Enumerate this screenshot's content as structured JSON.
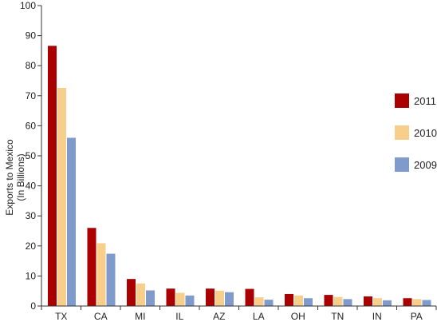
{
  "chart_data": {
    "type": "bar",
    "title": "",
    "xlabel": "",
    "ylabel_lines": [
      "Exports to Mexico",
      "(In Billions)"
    ],
    "ylim": [
      0,
      100
    ],
    "yticks": [
      0,
      10,
      20,
      30,
      40,
      50,
      60,
      70,
      80,
      90,
      100
    ],
    "categories": [
      "TX",
      "CA",
      "MI",
      "IL",
      "AZ",
      "LA",
      "OH",
      "TN",
      "IN",
      "PA"
    ],
    "series": [
      {
        "name": "2011",
        "color": "#aa0000",
        "values": [
          86.6,
          26.0,
          9.0,
          5.8,
          5.8,
          5.7,
          4.0,
          3.7,
          3.2,
          2.6
        ]
      },
      {
        "name": "2010",
        "color": "#f7cf8b",
        "values": [
          72.6,
          20.9,
          7.5,
          4.4,
          5.1,
          2.9,
          3.5,
          3.0,
          2.6,
          2.3
        ]
      },
      {
        "name": "2009",
        "color": "#7f9bcc",
        "values": [
          56.0,
          17.4,
          5.2,
          3.5,
          4.6,
          2.1,
          2.6,
          2.3,
          1.9,
          2.0
        ]
      }
    ],
    "legend_position": "right",
    "grid": false
  }
}
